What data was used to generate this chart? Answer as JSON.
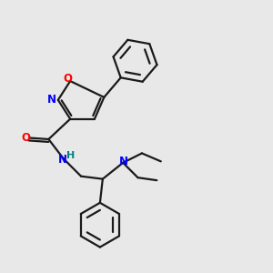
{
  "bg_color": "#e8e8e8",
  "bond_color": "#1a1a1a",
  "N_color": "#0000ff",
  "O_color": "#ff0000",
  "H_color": "#008080",
  "line_width": 1.6,
  "figsize": [
    3.0,
    3.0
  ],
  "dpi": 100,
  "xlim": [
    0,
    10
  ],
  "ylim": [
    0,
    10
  ]
}
